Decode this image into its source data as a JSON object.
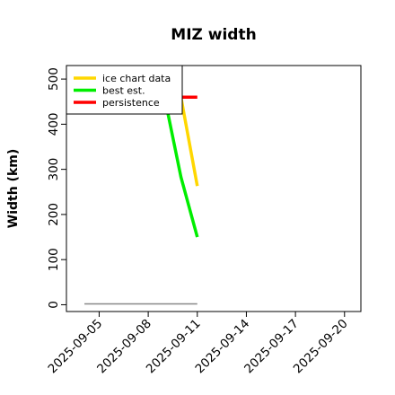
{
  "chart_data": {
    "type": "line",
    "title": "MIZ width",
    "xlabel": "",
    "ylabel": "Width (km)",
    "xlim": [
      "2025-09-03",
      "2025-09-21"
    ],
    "ylim": [
      -15,
      530
    ],
    "x_ticks": [
      "2025-09-05",
      "2025-09-08",
      "2025-09-11",
      "2025-09-14",
      "2025-09-17",
      "2025-09-20"
    ],
    "y_ticks": [
      0,
      100,
      200,
      300,
      400,
      500
    ],
    "legend_position": "top-left",
    "series": [
      {
        "name": "ice chart data",
        "color": "#FFD700",
        "points": [
          [
            "2025-09-09",
            500
          ],
          [
            "2025-09-10",
            460
          ],
          [
            "2025-09-11",
            263
          ]
        ]
      },
      {
        "name": "best est.",
        "color": "#00EE00",
        "points": [
          [
            "2025-09-09",
            460
          ],
          [
            "2025-09-10",
            283
          ],
          [
            "2025-09-11",
            150
          ]
        ]
      },
      {
        "name": "persistence",
        "color": "#FF0000",
        "points": [
          [
            "2025-09-10",
            460
          ],
          [
            "2025-09-11",
            460
          ]
        ]
      }
    ],
    "reference_lines": [
      {
        "color": "#888888",
        "points": [
          [
            "2025-09-04.1",
            2
          ],
          [
            "2025-09-11",
            2
          ]
        ]
      }
    ]
  }
}
